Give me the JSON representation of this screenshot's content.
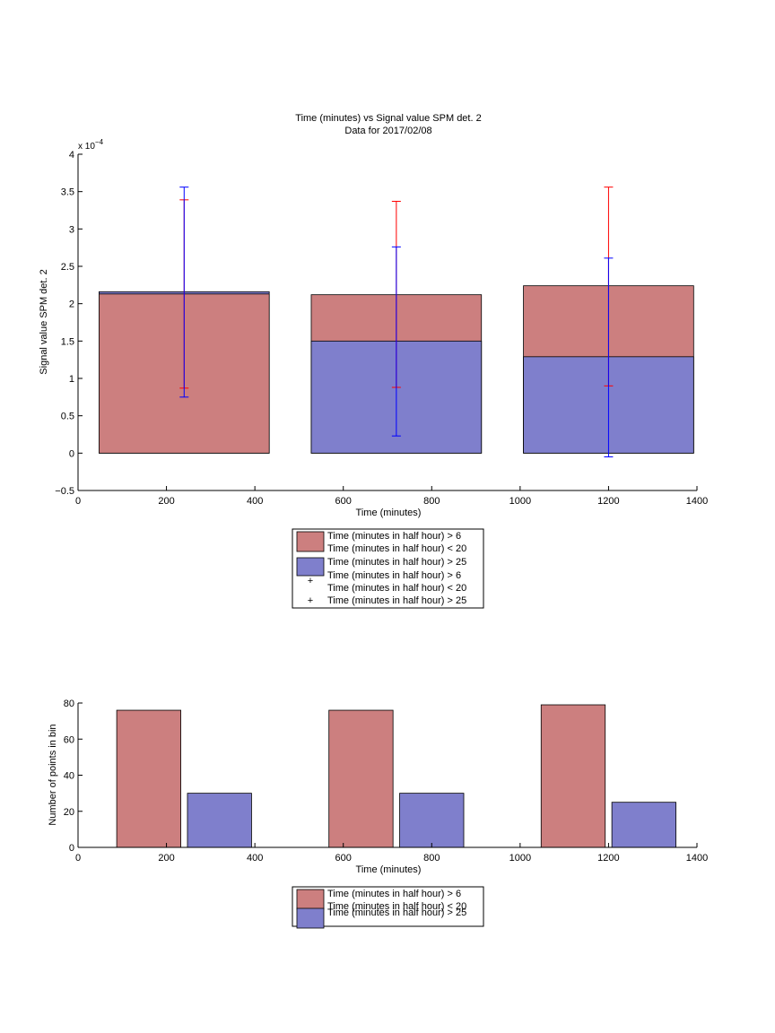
{
  "colors": {
    "series1": "#cc7f7f",
    "series2": "#7f7fcc",
    "err1": "#ff0000",
    "err2": "#0000ff",
    "axis": "#000000",
    "background": "#ffffff"
  },
  "chart_data": [
    {
      "type": "bar",
      "stacked": "overlay",
      "title": "Time (minutes) vs Signal value SPM det. 2",
      "subtitle": "Data for 2017/02/08",
      "xlabel": "Time (minutes)",
      "ylabel": "Signal value SPM det. 2",
      "exponent_label": "x 10",
      "exponent_power": "−4",
      "xlim": [
        0,
        1400
      ],
      "ylim": [
        -0.5,
        4
      ],
      "xticks": [
        0,
        200,
        400,
        600,
        800,
        1000,
        1200,
        1400
      ],
      "xtick_labels": [
        "0",
        "200",
        "400",
        "600",
        "800",
        "1000",
        "1200",
        "1400"
      ],
      "yticks": [
        -0.5,
        0,
        0.5,
        1,
        1.5,
        2,
        2.5,
        3,
        3.5,
        4
      ],
      "ytick_labels": [
        "−0.5",
        "0",
        "0.5",
        "1",
        "1.5",
        "2",
        "2.5",
        "3",
        "3.5",
        "4"
      ],
      "grid": false,
      "x": [
        240,
        720,
        1200
      ],
      "bar_width": 385,
      "series": [
        {
          "name": "Time (minutes in half hour) > 6\nTime (minutes in half hour) < 20",
          "values": [
            2.13,
            2.12,
            2.24
          ]
        },
        {
          "name": "Time (minutes in half hour) > 25",
          "values": [
            2.16,
            1.5,
            1.29
          ]
        }
      ],
      "errorbars": [
        {
          "name": "Time (minutes in half hour) > 6\nTime (minutes in half hour) < 20",
          "marker": "+",
          "lower": [
            0.87,
            0.88,
            0.9
          ],
          "upper": [
            3.39,
            3.37,
            3.56
          ]
        },
        {
          "name": "Time (minutes in half hour) > 25",
          "marker": "+",
          "lower": [
            0.75,
            0.23,
            -0.05
          ],
          "upper": [
            3.56,
            2.76,
            2.61
          ]
        }
      ],
      "legend": {
        "placement": "below-center",
        "entries": [
          {
            "kind": "patch",
            "series": 0,
            "lines": [
              "Time (minutes in half hour) > 6",
              "Time (minutes in half hour) < 20"
            ]
          },
          {
            "kind": "patch",
            "series": 1,
            "lines": [
              "Time (minutes in half hour) > 25"
            ]
          },
          {
            "kind": "marker",
            "series": 0,
            "lines": [
              "Time (minutes in half hour) > 6",
              "Time (minutes in half hour) < 20"
            ]
          },
          {
            "kind": "marker",
            "series": 1,
            "lines": [
              "Time (minutes in half hour) > 25"
            ]
          }
        ]
      }
    },
    {
      "type": "bar",
      "title": "",
      "xlabel": "Time (minutes)",
      "ylabel": "Number of points in bin",
      "xlim": [
        0,
        1400
      ],
      "ylim": [
        0,
        80
      ],
      "xticks": [
        0,
        200,
        400,
        600,
        800,
        1000,
        1200,
        1400
      ],
      "xtick_labels": [
        "0",
        "200",
        "400",
        "600",
        "800",
        "1000",
        "1200",
        "1400"
      ],
      "yticks": [
        0,
        20,
        40,
        60,
        80
      ],
      "ytick_labels": [
        "0",
        "20",
        "40",
        "60",
        "80"
      ],
      "grid": false,
      "groups": [
        240,
        720,
        1200
      ],
      "bar_width": 145,
      "bar_offset": 80,
      "series": [
        {
          "name": "Time (minutes in half hour) > 6\nTime (minutes in half hour) < 20",
          "values": [
            76,
            76,
            79
          ]
        },
        {
          "name": "Time (minutes in half hour) > 25",
          "values": [
            30,
            30,
            25
          ]
        }
      ],
      "legend": {
        "placement": "below-center",
        "entries": [
          {
            "kind": "patch",
            "series": 0,
            "lines": [
              "Time (minutes in half hour) > 6",
              "Time (minutes in half hour) < 20"
            ]
          },
          {
            "kind": "patch",
            "series": 1,
            "lines": [
              "Time (minutes in half hour) > 25"
            ]
          }
        ]
      }
    }
  ]
}
